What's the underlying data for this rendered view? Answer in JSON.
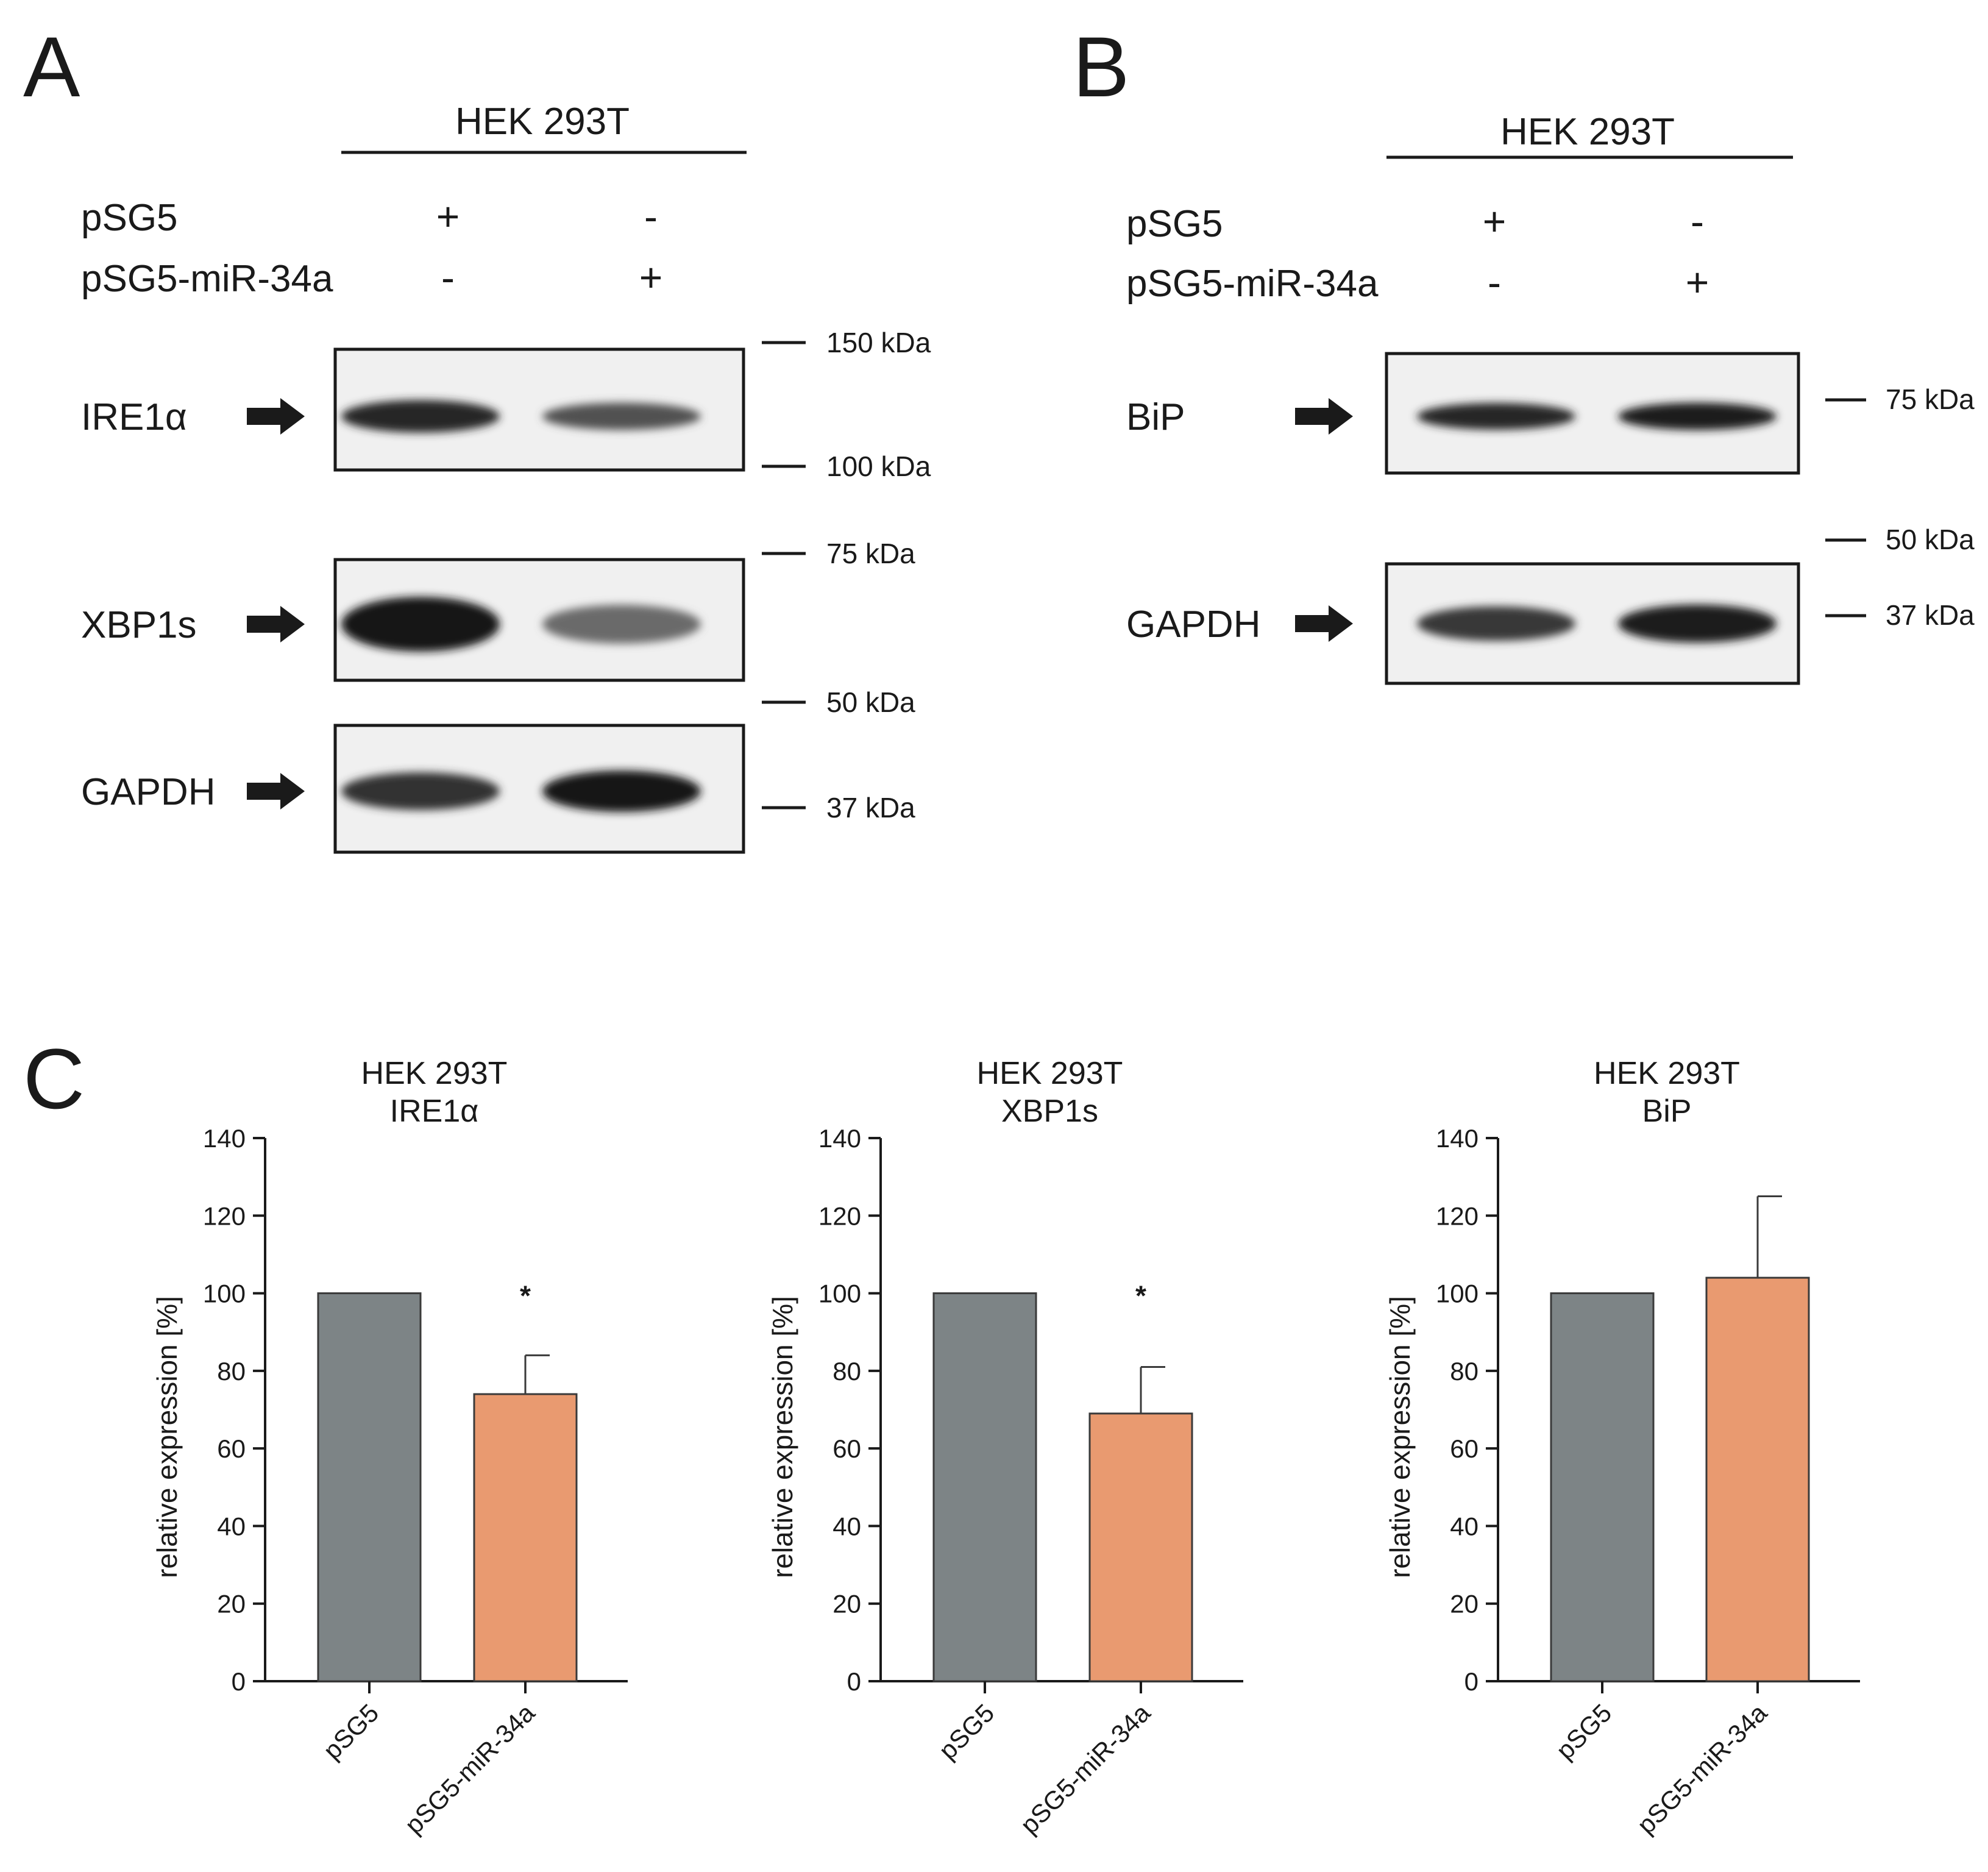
{
  "panel_a": {
    "letter": "A",
    "cell_line": "HEK 293T",
    "conditions": [
      {
        "label": "pSG5",
        "marks": [
          "+",
          "-"
        ]
      },
      {
        "label": "pSG5-miR-34a",
        "marks": [
          "-",
          "+"
        ]
      }
    ],
    "blots": [
      {
        "label": "IRE1α",
        "bands": [
          0.9,
          0.55
        ]
      },
      {
        "label": "XBP1s",
        "bands": [
          1.0,
          0.35
        ]
      },
      {
        "label": "GAPDH",
        "bands": [
          0.8,
          1.0
        ]
      }
    ],
    "markers": [
      "150 kDa",
      "100 kDa",
      "75 kDa",
      "50 kDa",
      "37 kDa"
    ]
  },
  "panel_b": {
    "letter": "B",
    "cell_line": "HEK 293T",
    "conditions": [
      {
        "label": "pSG5",
        "marks": [
          "+",
          "-"
        ]
      },
      {
        "label": "pSG5-miR-34a",
        "marks": [
          "-",
          "+"
        ]
      }
    ],
    "blots": [
      {
        "label": "BiP",
        "bands": [
          0.9,
          0.95
        ]
      },
      {
        "label": "GAPDH",
        "bands": [
          0.75,
          0.95
        ]
      }
    ],
    "markers": [
      "75 kDa",
      "50 kDa",
      "37 kDa"
    ]
  },
  "panel_c": {
    "letter": "C"
  },
  "colors": {
    "pSG5": "#7d8486",
    "pSG5-miR-34a": "#e99a70"
  },
  "chart_data": [
    {
      "type": "bar",
      "title": "HEK 293T",
      "subtitle": "IRE1α",
      "ylabel": "relative expression [%]",
      "ylim": [
        0,
        140
      ],
      "yticks": [
        "0",
        "20",
        "40",
        "60",
        "80",
        "100",
        "120",
        "140"
      ],
      "categories": [
        "pSG5",
        "pSG5-miR-34a"
      ],
      "values": [
        100,
        74
      ],
      "errors": [
        0,
        10
      ],
      "annotations": [
        "",
        "*"
      ]
    },
    {
      "type": "bar",
      "title": "HEK 293T",
      "subtitle": "XBP1s",
      "ylabel": "relative expression [%]",
      "ylim": [
        0,
        140
      ],
      "yticks": [
        "0",
        "20",
        "40",
        "60",
        "80",
        "100",
        "120",
        "140"
      ],
      "categories": [
        "pSG5",
        "pSG5-miR-34a"
      ],
      "values": [
        100,
        69
      ],
      "errors": [
        0,
        12
      ],
      "annotations": [
        "",
        "*"
      ]
    },
    {
      "type": "bar",
      "title": "HEK 293T",
      "subtitle": "BiP",
      "ylabel": "relative expression [%]",
      "ylim": [
        0,
        140
      ],
      "yticks": [
        "0",
        "20",
        "40",
        "60",
        "80",
        "100",
        "120",
        "140"
      ],
      "categories": [
        "pSG5",
        "pSG5-miR-34a"
      ],
      "values": [
        100,
        104
      ],
      "errors": [
        0,
        21
      ],
      "annotations": [
        "",
        ""
      ]
    }
  ]
}
